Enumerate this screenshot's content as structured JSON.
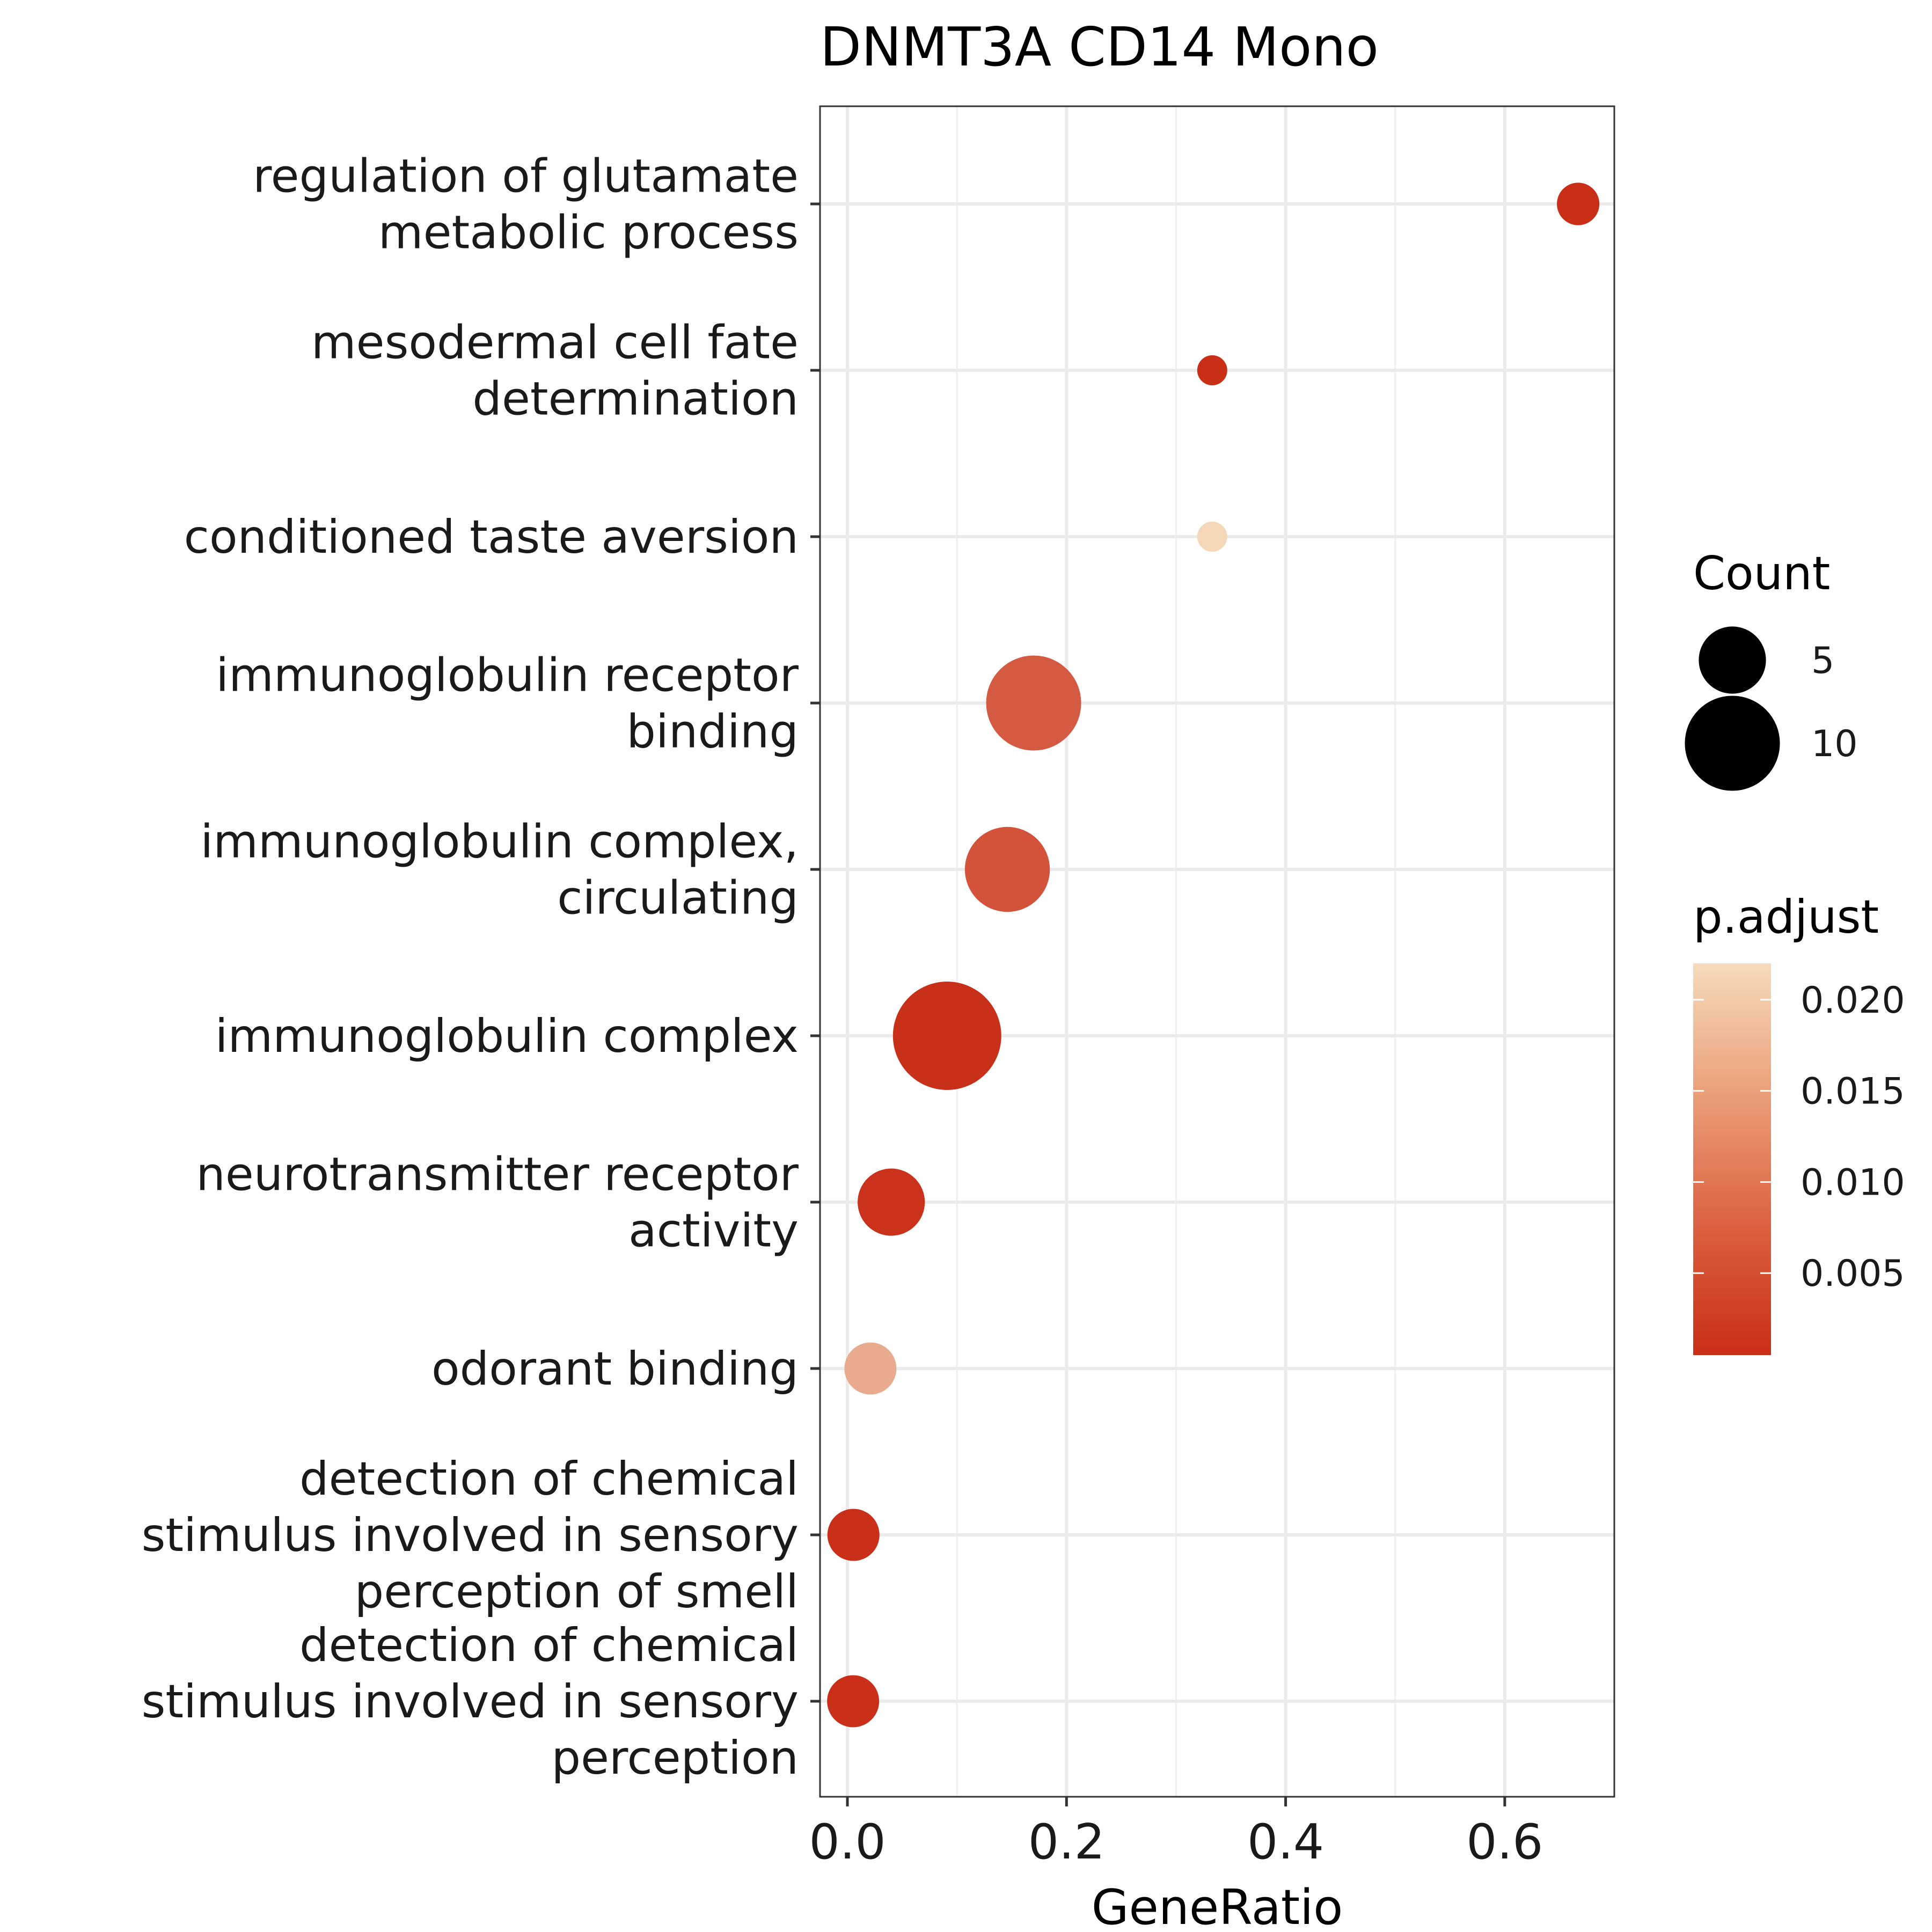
{
  "chart_data": {
    "type": "scatter",
    "title": "DNMT3A CD14 Mono",
    "xlabel": "GeneRatio",
    "ylabel": "",
    "xlim": [
      -0.025,
      0.7
    ],
    "x_ticks": [
      "0.0",
      "0.2",
      "0.4",
      "0.6"
    ],
    "x_tick_values": [
      0.0,
      0.2,
      0.4,
      0.6
    ],
    "grid": true,
    "colors": {
      "low": "#c92e17",
      "high": "#f5dbbc"
    },
    "categories": [
      [
        "regulation of glutamate",
        "metabolic process"
      ],
      [
        "mesodermal cell fate",
        "determination"
      ],
      [
        "conditioned taste aversion"
      ],
      [
        "immunoglobulin receptor",
        "binding"
      ],
      [
        "immunoglobulin complex,",
        "circulating"
      ],
      [
        "immunoglobulin complex"
      ],
      [
        "neurotransmitter receptor",
        "activity"
      ],
      [
        "odorant binding"
      ],
      [
        "detection of chemical",
        "stimulus involved in sensory",
        "perception of smell"
      ],
      [
        "detection of chemical",
        "stimulus involved in sensory",
        "perception"
      ]
    ],
    "points": [
      {
        "gene_ratio": 0.667,
        "count": 2,
        "p_adjust": 0.0005
      },
      {
        "gene_ratio": 0.333,
        "count": 1,
        "p_adjust": 0.0005
      },
      {
        "gene_ratio": 0.333,
        "count": 1,
        "p_adjust": 0.0215
      },
      {
        "gene_ratio": 0.17,
        "count": 10,
        "p_adjust": 0.006
      },
      {
        "gene_ratio": 0.146,
        "count": 8,
        "p_adjust": 0.005
      },
      {
        "gene_ratio": 0.091,
        "count": 13,
        "p_adjust": 0.0007
      },
      {
        "gene_ratio": 0.04,
        "count": 5,
        "p_adjust": 0.001
      },
      {
        "gene_ratio": 0.021,
        "count": 3,
        "p_adjust": 0.016
      },
      {
        "gene_ratio": 0.0055,
        "count": 3,
        "p_adjust": 0.0008
      },
      {
        "gene_ratio": 0.0052,
        "count": 3,
        "p_adjust": 0.0008
      }
    ],
    "legend": {
      "placement": "right",
      "size_title": "Count",
      "size_values": [
        5,
        10
      ],
      "color_title": "p.adjust",
      "color_ticks": [
        "0.020",
        "0.015",
        "0.010",
        "0.005"
      ],
      "color_tick_values": [
        0.02,
        0.015,
        0.01,
        0.005
      ],
      "color_range": [
        0.0005,
        0.022
      ]
    }
  }
}
